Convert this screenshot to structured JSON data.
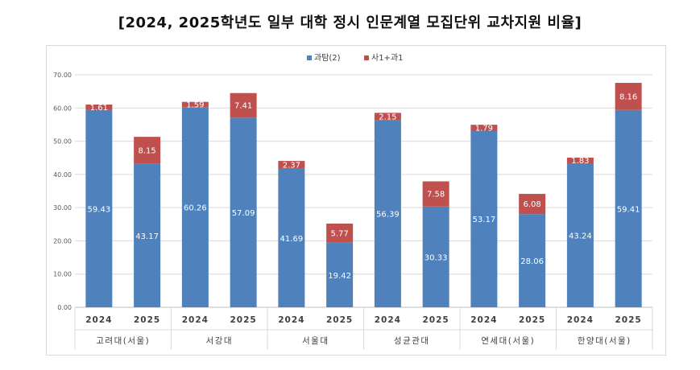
{
  "title": "[2024, 2025학년도 일부 대학 정시 인문계열 모집단위 교차지원 비율]",
  "chart_data": {
    "type": "bar",
    "stacked": true,
    "title": "[2024, 2025학년도 일부 대학 정시 인문계열 모집단위 교차지원 비율]",
    "groups": [
      "고려대(서울)",
      "서강대",
      "서울대",
      "성균관대",
      "연세대(서울)",
      "한양대(서울)"
    ],
    "categories": [
      "2024",
      "2025",
      "2024",
      "2025",
      "2024",
      "2025",
      "2024",
      "2025",
      "2024",
      "2025",
      "2024",
      "2025"
    ],
    "series": [
      {
        "name": "과탐(2)",
        "color": "#4f81bd",
        "values": [
          59.43,
          43.17,
          60.26,
          57.09,
          41.69,
          19.42,
          56.39,
          30.33,
          53.17,
          28.06,
          43.24,
          59.41
        ],
        "labels": [
          "59.43",
          "43.17",
          "60.26",
          "57.09",
          "41.69",
          "19.42",
          "56.39",
          "30.33",
          "53.17",
          "28.06",
          "43.24",
          "59.41"
        ]
      },
      {
        "name": "사1+과1",
        "color": "#c0504d",
        "values": [
          1.61,
          8.15,
          1.59,
          7.41,
          2.37,
          5.77,
          2.15,
          7.58,
          1.79,
          6.08,
          1.83,
          8.16
        ],
        "labels": [
          "1.61",
          "8.15",
          "1.59",
          "7.41",
          "2.37",
          "5.77",
          "2.15",
          "7.58",
          "1.79",
          "6.08",
          "1.83",
          "8.16"
        ]
      }
    ],
    "ylim": [
      0,
      70
    ],
    "yticks": [
      "0.00",
      "10.00",
      "20.00",
      "30.00",
      "40.00",
      "50.00",
      "60.00",
      "70.00"
    ],
    "grid": true,
    "legend_position": "top"
  }
}
